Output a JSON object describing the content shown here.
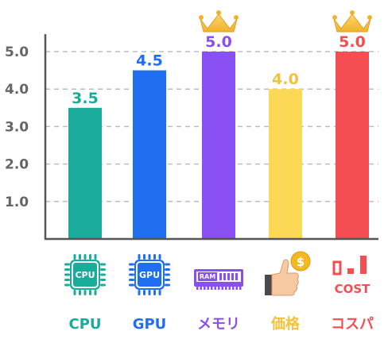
{
  "chart_data": {
    "type": "bar",
    "categories": [
      "CPU",
      "GPU",
      "メモリ",
      "価格",
      "コスパ"
    ],
    "values": [
      3.5,
      4.5,
      5.0,
      4.0,
      5.0
    ],
    "value_labels": [
      "3.5",
      "4.5",
      "5.0",
      "4.0",
      "5.0"
    ],
    "colors": [
      "#1aab9b",
      "#1f6ff0",
      "#8a4ff2",
      "#fcd955",
      "#f54e52"
    ],
    "value_label_colors": [
      "#1aab9b",
      "#1f6ff0",
      "#8a4ff2",
      "#f2c23a",
      "#f54e52"
    ],
    "icons": [
      "cpu-chip-icon",
      "gpu-chip-icon",
      "ram-module-icon",
      "price-thumbs-up-coin-icon",
      "cost-bar-icon"
    ],
    "icon_texts": [
      "CPU",
      "GPU",
      "RAM",
      "$",
      "COST"
    ],
    "crowned": [
      false,
      false,
      true,
      false,
      true
    ],
    "yticks": [
      "1.0",
      "2.0",
      "3.0",
      "4.0",
      "5.0"
    ],
    "ylim": [
      0,
      5.0
    ],
    "grid": true,
    "title": "",
    "xlabel": "",
    "ylabel": ""
  }
}
